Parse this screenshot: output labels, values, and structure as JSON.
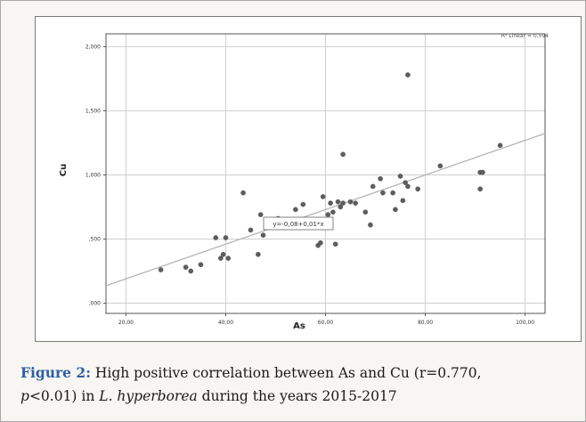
{
  "caption": {
    "label": "Figure 2:",
    "line1_text": " High positive correlation between As and Cu (r=0.770,",
    "p_symbol": "p",
    "line2_mid": "<0.01) in ",
    "species": "L. hyperborea",
    "line2_end": " during the years 2015-2017"
  },
  "chart_data": {
    "type": "scatter",
    "xlabel": "As",
    "ylabel": "Cu",
    "xlim": [
      16,
      104
    ],
    "ylim": [
      -0.08,
      2.1
    ],
    "x_ticks": [
      "20,00",
      "40,00",
      "60,00",
      "80,00",
      "100,00"
    ],
    "y_ticks": [
      ",000",
      ",500",
      "1,000",
      "1,500",
      "2,000"
    ],
    "x_tick_values": [
      20,
      40,
      60,
      80,
      100
    ],
    "y_tick_values": [
      0,
      0.5,
      1.0,
      1.5,
      2.0
    ],
    "grid": true,
    "fit_line": {
      "intercept": -0.08,
      "slope": 0.01349
    },
    "fit_label": "y=-0,08+0,01*x",
    "r2_label": "R² Linear = 0,594",
    "points": [
      [
        27,
        0.26
      ],
      [
        32,
        0.28
      ],
      [
        33,
        0.25
      ],
      [
        35,
        0.3
      ],
      [
        38,
        0.51
      ],
      [
        39,
        0.35
      ],
      [
        39.5,
        0.38
      ],
      [
        40,
        0.51
      ],
      [
        40.5,
        0.35
      ],
      [
        43.5,
        0.86
      ],
      [
        45,
        0.57
      ],
      [
        46.5,
        0.38
      ],
      [
        47,
        0.69
      ],
      [
        47.5,
        0.53
      ],
      [
        50.5,
        0.66
      ],
      [
        54,
        0.73
      ],
      [
        55.5,
        0.77
      ],
      [
        58.5,
        0.45
      ],
      [
        59,
        0.47
      ],
      [
        59.5,
        0.83
      ],
      [
        60.5,
        0.69
      ],
      [
        61,
        0.78
      ],
      [
        61.5,
        0.71
      ],
      [
        62,
        0.46
      ],
      [
        62.5,
        0.79
      ],
      [
        63,
        0.75
      ],
      [
        63.5,
        0.78
      ],
      [
        63.5,
        1.16
      ],
      [
        65,
        0.79
      ],
      [
        66,
        0.78
      ],
      [
        68,
        0.71
      ],
      [
        69,
        0.61
      ],
      [
        69.5,
        0.91
      ],
      [
        71,
        0.97
      ],
      [
        71.5,
        0.86
      ],
      [
        73.5,
        0.86
      ],
      [
        74,
        0.73
      ],
      [
        75,
        0.99
      ],
      [
        75.5,
        0.8
      ],
      [
        76,
        0.94
      ],
      [
        76.5,
        0.91
      ],
      [
        76.5,
        1.78
      ],
      [
        78.5,
        0.89
      ],
      [
        83,
        1.07
      ],
      [
        91,
        1.02
      ],
      [
        91,
        0.89
      ],
      [
        91.5,
        1.02
      ],
      [
        95,
        1.23
      ]
    ]
  }
}
